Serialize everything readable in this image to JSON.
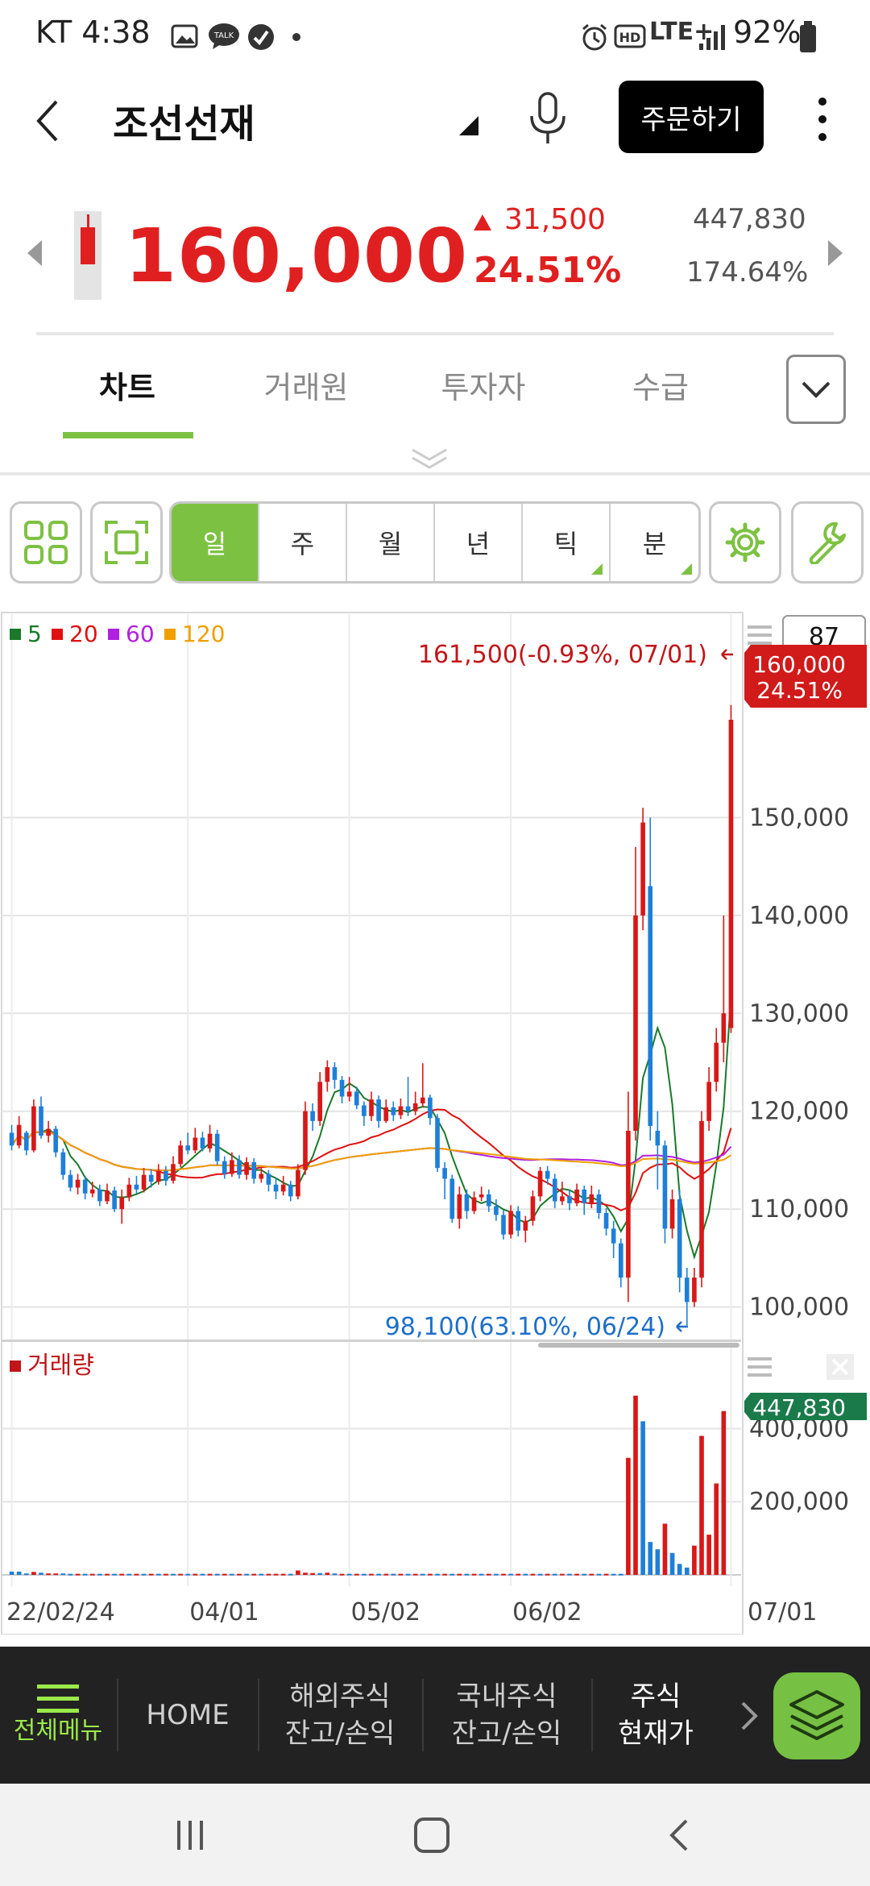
{
  "status_bar": {
    "carrier_time": "KT 4:38",
    "network": "LTE+",
    "battery": "92%",
    "icons": [
      "gallery-icon",
      "talk-icon",
      "check-icon",
      "dot-icon",
      "alarm-icon",
      "hd-icon",
      "signal-icon",
      "battery-icon"
    ],
    "talk_label": "TALK",
    "hd_label": "HD"
  },
  "header": {
    "back_icon": "chevron-left-icon",
    "title": "조선선재",
    "mic_icon": "microphone-icon",
    "order_label": "주문하기",
    "more_icon": "more-vertical-icon"
  },
  "quote": {
    "price": "160,000",
    "change": "31,500",
    "change_pct": "24.51%",
    "volume": "447,830",
    "volume_ratio": "174.64%",
    "up_color": "#e02020"
  },
  "tabs": {
    "items": [
      {
        "label": "차트",
        "active": true
      },
      {
        "label": "거래원",
        "active": false
      },
      {
        "label": "투자자",
        "active": false
      },
      {
        "label": "수급",
        "active": false
      }
    ],
    "expand_icon": "chevron-down-icon",
    "accent": "#7dc142"
  },
  "toolbar": {
    "periods": [
      {
        "label": "일",
        "active": true
      },
      {
        "label": "주",
        "active": false
      },
      {
        "label": "월",
        "active": false
      },
      {
        "label": "년",
        "active": false
      },
      {
        "label": "틱",
        "active": false
      },
      {
        "label": "분",
        "active": false
      }
    ],
    "icons": [
      "grid-icon",
      "fullscreen-icon",
      "settings-icon",
      "wrench-icon"
    ]
  },
  "chart_data": {
    "type": "candlestick",
    "ma_legend": [
      {
        "label": "5",
        "color": "#1a7a2a"
      },
      {
        "label": "20",
        "color": "#e01010"
      },
      {
        "label": "60",
        "color": "#b020e0"
      },
      {
        "label": "120",
        "color": "#f0a000"
      }
    ],
    "candle_count": "87",
    "x_ticks": [
      "22/02/24",
      "04/01",
      "05/02",
      "06/02",
      "07/01"
    ],
    "y_ticks": [
      100000,
      110000,
      120000,
      130000,
      140000,
      150000
    ],
    "y_tick_labels": [
      "100,000",
      "110,000",
      "120,000",
      "130,000",
      "140,000",
      "150,000"
    ],
    "ylim": [
      97000,
      167000
    ],
    "high_annotation": "161,500(-0.93%, 07/01)",
    "low_annotation": "98,100(63.10%, 06/24)",
    "last_price_label": "160,000",
    "last_pct_label": "24.51%",
    "up_color": "#d81818",
    "down_color": "#1e7fd8",
    "candles": [
      [
        117800,
        116500,
        118600,
        116000
      ],
      [
        116500,
        118600,
        119500,
        116200
      ],
      [
        117800,
        116000,
        118000,
        115500
      ],
      [
        116000,
        120500,
        121200,
        115800
      ],
      [
        120500,
        117500,
        121500,
        117200
      ],
      [
        117500,
        118200,
        119000,
        116800
      ],
      [
        118200,
        115800,
        118500,
        115300
      ],
      [
        115800,
        113500,
        116200,
        113000
      ],
      [
        113500,
        112200,
        114000,
        111800
      ],
      [
        112200,
        113000,
        113600,
        111500
      ],
      [
        113000,
        111600,
        113400,
        111000
      ],
      [
        111600,
        112000,
        112800,
        111200
      ],
      [
        112000,
        110800,
        112500,
        110300
      ],
      [
        110800,
        111900,
        112600,
        110500
      ],
      [
        111900,
        110000,
        112300,
        109700
      ],
      [
        110000,
        111200,
        112000,
        108500
      ],
      [
        111200,
        112500,
        113200,
        110800
      ],
      [
        112500,
        112000,
        113400,
        111600
      ],
      [
        112000,
        113500,
        114200,
        111700
      ],
      [
        113500,
        112800,
        114100,
        112200
      ],
      [
        112800,
        113900,
        114600,
        112500
      ],
      [
        113900,
        112900,
        114400,
        112400
      ],
      [
        112900,
        114600,
        115400,
        112600
      ],
      [
        114600,
        116500,
        117000,
        114300
      ],
      [
        116500,
        116000,
        117800,
        115600
      ],
      [
        116000,
        117300,
        118300,
        115700
      ],
      [
        117300,
        116200,
        117900,
        115900
      ],
      [
        116200,
        117700,
        118600,
        115800
      ],
      [
        117700,
        114900,
        118100,
        114500
      ],
      [
        114900,
        113600,
        115400,
        113100
      ],
      [
        113600,
        115000,
        115800,
        113300
      ],
      [
        115000,
        113500,
        115500,
        113100
      ],
      [
        113500,
        114800,
        115300,
        113000
      ],
      [
        114800,
        113100,
        115200,
        112600
      ],
      [
        113100,
        113600,
        114200,
        112700
      ],
      [
        113600,
        112500,
        114000,
        111800
      ],
      [
        112500,
        111800,
        113200,
        111000
      ],
      [
        111800,
        112500,
        113400,
        111400
      ],
      [
        112500,
        111300,
        112900,
        110800
      ],
      [
        111300,
        114000,
        114600,
        111000
      ],
      [
        114000,
        120000,
        121000,
        113500
      ],
      [
        120000,
        119000,
        120800,
        118000
      ],
      [
        119000,
        123000,
        124000,
        118500
      ],
      [
        123000,
        124500,
        125200,
        122000
      ],
      [
        124500,
        123200,
        125000,
        122300
      ],
      [
        123200,
        121500,
        123600,
        120800
      ],
      [
        121500,
        122000,
        123500,
        121000
      ],
      [
        122000,
        120600,
        122500,
        120200
      ],
      [
        120600,
        119500,
        121000,
        118500
      ],
      [
        119500,
        121200,
        122000,
        119000
      ],
      [
        121200,
        119000,
        121600,
        118300
      ],
      [
        119000,
        120400,
        121200,
        118800
      ],
      [
        120400,
        119600,
        121000,
        119000
      ],
      [
        119600,
        120500,
        121300,
        119200
      ],
      [
        120500,
        120000,
        123500,
        119500
      ],
      [
        120000,
        120800,
        122000,
        119600
      ],
      [
        120800,
        121400,
        124900,
        120400
      ],
      [
        121400,
        119300,
        121700,
        118600
      ],
      [
        119300,
        114200,
        119700,
        113800
      ],
      [
        114200,
        113100,
        114800,
        111000
      ],
      [
        113100,
        109000,
        113500,
        108600
      ],
      [
        109000,
        111500,
        112300,
        108000
      ],
      [
        111500,
        109800,
        112000,
        109000
      ],
      [
        109800,
        111200,
        111800,
        109500
      ],
      [
        111200,
        111500,
        112300,
        110800
      ],
      [
        111500,
        110300,
        112000,
        109700
      ],
      [
        110300,
        109400,
        111000,
        108800
      ],
      [
        109400,
        107400,
        109900,
        106900
      ],
      [
        107400,
        109800,
        110400,
        107000
      ],
      [
        109800,
        107800,
        110300,
        107200
      ],
      [
        107800,
        108800,
        109300,
        106600
      ],
      [
        108800,
        111300,
        111900,
        108300
      ],
      [
        111300,
        113900,
        114300,
        110800
      ],
      [
        113900,
        113100,
        114400,
        112500
      ],
      [
        113100,
        110800,
        113600,
        110100
      ],
      [
        110800,
        111300,
        112800,
        110400
      ],
      [
        111300,
        110600,
        112000,
        109900
      ],
      [
        110600,
        112000,
        112600,
        110300
      ],
      [
        112000,
        110600,
        112400,
        109400
      ],
      [
        110600,
        111500,
        112400,
        110100
      ],
      [
        111500,
        109600,
        112000,
        109000
      ],
      [
        109600,
        108000,
        110100,
        107300
      ],
      [
        108000,
        106500,
        108800,
        105000
      ],
      [
        106500,
        103000,
        107000,
        102000
      ],
      [
        103000,
        118000,
        122000,
        100500
      ],
      [
        118000,
        140000,
        147000,
        117000
      ],
      [
        140000,
        149500,
        151000,
        138500
      ]
    ],
    "candles_tail": [
      [
        143000,
        118500,
        150000,
        117000
      ],
      [
        118000,
        116500,
        120000,
        112000
      ],
      [
        116500,
        108000,
        117000,
        106500
      ],
      [
        108000,
        111000,
        112000,
        107000
      ],
      [
        111000,
        103000,
        112000,
        101500
      ],
      [
        103000,
        100500,
        104000,
        98100
      ],
      [
        100500,
        103000,
        104000,
        100000
      ],
      [
        103000,
        119000,
        120000,
        102000
      ],
      [
        119000,
        123000,
        124500,
        118000
      ],
      [
        123000,
        127000,
        128500,
        122000
      ],
      [
        127000,
        130000,
        140000,
        125000
      ],
      [
        128500,
        160000,
        161500,
        128000
      ]
    ],
    "volume": {
      "label": "거래량",
      "last_label": "447,830",
      "y_ticks": [
        200000,
        400000
      ],
      "y_tick_labels": [
        "200,000",
        "400,000"
      ],
      "ylim": [
        0,
        520000
      ],
      "bars": [
        [
          2,
          9000
        ],
        [
          2,
          9000
        ],
        [
          2,
          4000
        ],
        [
          1,
          8000
        ],
        [
          2,
          6000
        ],
        [
          1,
          4000
        ],
        [
          1,
          4000
        ],
        [
          2,
          4000
        ],
        [
          2,
          3000
        ],
        [
          1,
          3000
        ],
        [
          2,
          3000
        ],
        [
          1,
          3000
        ],
        [
          2,
          3000
        ],
        [
          1,
          3000
        ],
        [
          2,
          3000
        ],
        [
          1,
          3000
        ],
        [
          2,
          3000
        ],
        [
          1,
          3000
        ],
        [
          2,
          3000
        ],
        [
          1,
          3000
        ],
        [
          2,
          3000
        ],
        [
          1,
          3000
        ],
        [
          2,
          3000
        ],
        [
          1,
          3000
        ],
        [
          2,
          3000
        ],
        [
          1,
          3000
        ],
        [
          2,
          3000
        ],
        [
          1,
          3000
        ],
        [
          2,
          3000
        ],
        [
          1,
          3000
        ],
        [
          2,
          3000
        ],
        [
          1,
          3000
        ],
        [
          2,
          3000
        ],
        [
          1,
          3000
        ],
        [
          2,
          3000
        ],
        [
          1,
          3000
        ],
        [
          1,
          3000
        ],
        [
          1,
          3000
        ],
        [
          2,
          3000
        ],
        [
          1,
          12000
        ],
        [
          1,
          6000
        ],
        [
          1,
          5000
        ],
        [
          2,
          5000
        ],
        [
          1,
          6000
        ],
        [
          2,
          4000
        ],
        [
          1,
          3000
        ],
        [
          2,
          3000
        ],
        [
          1,
          3000
        ],
        [
          2,
          3000
        ],
        [
          1,
          3000
        ],
        [
          2,
          3000
        ],
        [
          1,
          3000
        ],
        [
          2,
          3000
        ],
        [
          1,
          3000
        ],
        [
          2,
          3000
        ],
        [
          1,
          3000
        ],
        [
          2,
          3000
        ],
        [
          1,
          3000
        ],
        [
          2,
          3000
        ],
        [
          1,
          3000
        ],
        [
          2,
          3000
        ],
        [
          1,
          3000
        ],
        [
          2,
          3000
        ],
        [
          1,
          3000
        ],
        [
          2,
          3000
        ],
        [
          1,
          3000
        ],
        [
          2,
          3000
        ],
        [
          1,
          3000
        ],
        [
          2,
          3000
        ],
        [
          1,
          3000
        ],
        [
          2,
          3000
        ],
        [
          1,
          3000
        ],
        [
          2,
          3000
        ],
        [
          1,
          3000
        ],
        [
          2,
          3000
        ],
        [
          1,
          3000
        ],
        [
          2,
          3000
        ],
        [
          1,
          3000
        ],
        [
          2,
          3000
        ],
        [
          1,
          3000
        ],
        [
          2,
          3000
        ],
        [
          1,
          3000
        ],
        [
          2,
          3000
        ],
        [
          2,
          3000
        ],
        [
          1,
          320000
        ],
        [
          1,
          490000
        ],
        [
          2,
          420000
        ]
      ],
      "bars_tail": [
        [
          2,
          90000
        ],
        [
          2,
          70000
        ],
        [
          1,
          140000
        ],
        [
          2,
          60000
        ],
        [
          2,
          30000
        ],
        [
          2,
          20000
        ],
        [
          1,
          80000
        ],
        [
          1,
          380000
        ],
        [
          1,
          110000
        ],
        [
          1,
          250000
        ],
        [
          1,
          447830
        ]
      ]
    }
  },
  "bottom_nav": {
    "menu_icon": "hamburger-icon",
    "menu_label": "전체메뉴",
    "items": [
      {
        "label": "HOME",
        "active": false
      },
      {
        "label": "해외주식\n잔고/손익",
        "active": false
      },
      {
        "label": "국내주식\n잔고/손익",
        "active": false
      },
      {
        "label": "주식\n현재가",
        "active": true
      }
    ],
    "next_icon": "chevron-right-icon",
    "layers_icon": "layers-icon",
    "menu_color": "#9be94a"
  },
  "system_nav": {
    "icons": [
      "recents-icon",
      "home-icon",
      "back-icon"
    ]
  }
}
